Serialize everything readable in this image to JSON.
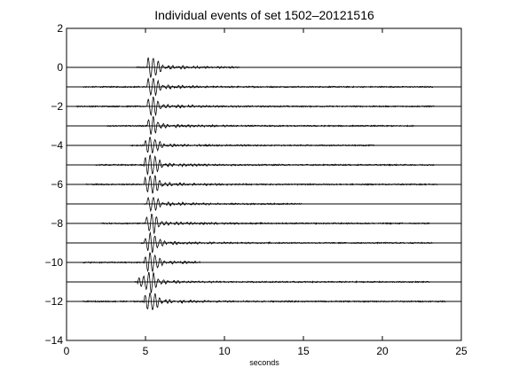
{
  "chart_data": {
    "type": "line",
    "title": "Individual events of set 1502–20121516",
    "xlabel": "seconds",
    "ylabel": "",
    "xlim": [
      0,
      25
    ],
    "ylim": [
      -14,
      2
    ],
    "grid": false,
    "legend": "none",
    "line_color": "#000000",
    "xticks": [
      {
        "value": 0,
        "label": "0"
      },
      {
        "value": 5,
        "label": "5"
      },
      {
        "value": 10,
        "label": "10"
      },
      {
        "value": 15,
        "label": "15"
      },
      {
        "value": 20,
        "label": "20"
      },
      {
        "value": 25,
        "label": "25"
      }
    ],
    "yticks": [
      {
        "value": 2,
        "label": "2"
      },
      {
        "value": 0,
        "label": "0"
      },
      {
        "value": -2,
        "label": "−2"
      },
      {
        "value": -4,
        "label": "−4"
      },
      {
        "value": -6,
        "label": "−6"
      },
      {
        "value": -8,
        "label": "−8"
      },
      {
        "value": -10,
        "label": "−10"
      },
      {
        "value": -12,
        "label": "−12"
      },
      {
        "value": -14,
        "label": "−14"
      }
    ],
    "baseline_x_range": [
      0,
      25
    ],
    "series": [
      {
        "offset": 0,
        "record_start": 4.4,
        "record_end": 11.0,
        "onset": 5.1,
        "peak_time": 5.4,
        "amplitude": 0.45
      },
      {
        "offset": -1,
        "record_start": 1.0,
        "record_end": 23.2,
        "onset": 5.1,
        "peak_time": 5.4,
        "amplitude": 0.4
      },
      {
        "offset": -2,
        "record_start": 0.6,
        "record_end": 23.3,
        "onset": 5.1,
        "peak_time": 5.4,
        "amplitude": 0.4
      },
      {
        "offset": -3,
        "record_start": 2.5,
        "record_end": 22.0,
        "onset": 5.1,
        "peak_time": 5.4,
        "amplitude": 0.35
      },
      {
        "offset": -4,
        "record_start": 4.0,
        "record_end": 19.5,
        "onset": 4.9,
        "peak_time": 5.4,
        "amplitude": 0.35
      },
      {
        "offset": -5,
        "record_start": 1.8,
        "record_end": 23.3,
        "onset": 4.9,
        "peak_time": 5.4,
        "amplitude": 0.45
      },
      {
        "offset": -6,
        "record_start": 1.2,
        "record_end": 23.5,
        "onset": 4.9,
        "peak_time": 5.4,
        "amplitude": 0.42
      },
      {
        "offset": -7,
        "record_start": 4.9,
        "record_end": 15.0,
        "onset": 5.1,
        "peak_time": 5.4,
        "amplitude": 0.32
      },
      {
        "offset": -8,
        "record_start": 2.2,
        "record_end": 23.0,
        "onset": 5.0,
        "peak_time": 5.4,
        "amplitude": 0.4
      },
      {
        "offset": -9,
        "record_start": 4.7,
        "record_end": 23.2,
        "onset": 4.9,
        "peak_time": 5.4,
        "amplitude": 0.4
      },
      {
        "offset": -10,
        "record_start": 1.0,
        "record_end": 8.5,
        "onset": 4.9,
        "peak_time": 5.4,
        "amplitude": 0.42
      },
      {
        "offset": -11,
        "record_start": 4.3,
        "record_end": 23.0,
        "onset": 4.5,
        "peak_time": 5.3,
        "amplitude": 0.45
      },
      {
        "offset": -12,
        "record_start": 1.0,
        "record_end": 24.0,
        "onset": 4.9,
        "peak_time": 5.4,
        "amplitude": 0.4
      }
    ]
  }
}
